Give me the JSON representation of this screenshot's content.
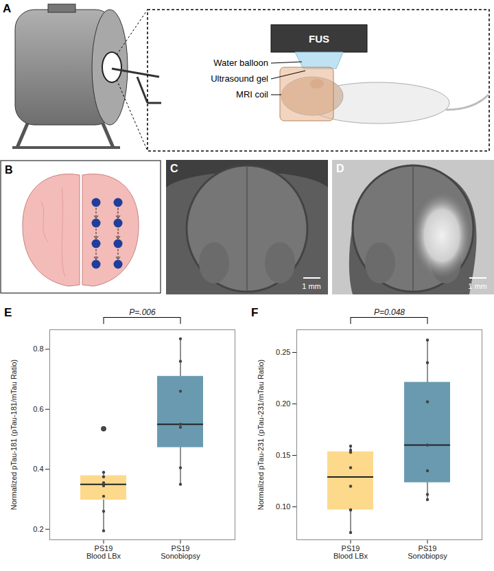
{
  "panels": [
    {
      "label": "A",
      "annotations": [
        "FUS",
        "Water balloon",
        "Ultrasound gel",
        "MRI coil"
      ]
    },
    {
      "label": "B"
    },
    {
      "label": "C",
      "scale_bar": "1 mm"
    },
    {
      "label": "D",
      "scale_bar": "1 mm"
    }
  ],
  "chart_data": [
    {
      "type": "box",
      "title": "E",
      "annotations": [
        "P=.006"
      ],
      "y_label": "Normalized pTau-181 (pTau-181/mTau Ratio)",
      "categories": [
        "PS19\nBlood LBx",
        "PS19\nSonobiopsy"
      ],
      "colors": [
        "#FDD98C",
        "#6A9AB0"
      ],
      "values": [
        [
          0.195,
          0.26,
          0.31,
          0.345,
          0.355,
          0.375,
          0.39,
          0.535
        ],
        [
          0.35,
          0.405,
          0.54,
          0.55,
          0.66,
          0.76,
          0.835
        ]
      ],
      "ylim": [
        0.165,
        0.865
      ],
      "yticks": [
        0.2,
        0.4,
        0.6,
        0.8
      ]
    },
    {
      "type": "box",
      "title": "F",
      "annotations": [
        "P=0.048"
      ],
      "y_label": "Normalized pTau-231 (pTau-231/mTau Ratio)",
      "categories": [
        "PS19\nBlood LBx",
        "PS19\nSonobiopsy"
      ],
      "colors": [
        "#FDD98C",
        "#6A9AB0"
      ],
      "values": [
        [
          0.075,
          0.097,
          0.097,
          0.12,
          0.138,
          0.153,
          0.155,
          0.159
        ],
        [
          0.107,
          0.112,
          0.135,
          0.16,
          0.202,
          0.24,
          0.262
        ]
      ],
      "ylim": [
        0.068,
        0.272
      ],
      "yticks": [
        {
          "value": 0.1,
          "label": "0.10"
        },
        {
          "value": 0.15,
          "label": "0.15"
        },
        {
          "value": 0.2,
          "label": "0.20"
        },
        {
          "value": 0.25,
          "label": "0.25"
        }
      ]
    }
  ]
}
